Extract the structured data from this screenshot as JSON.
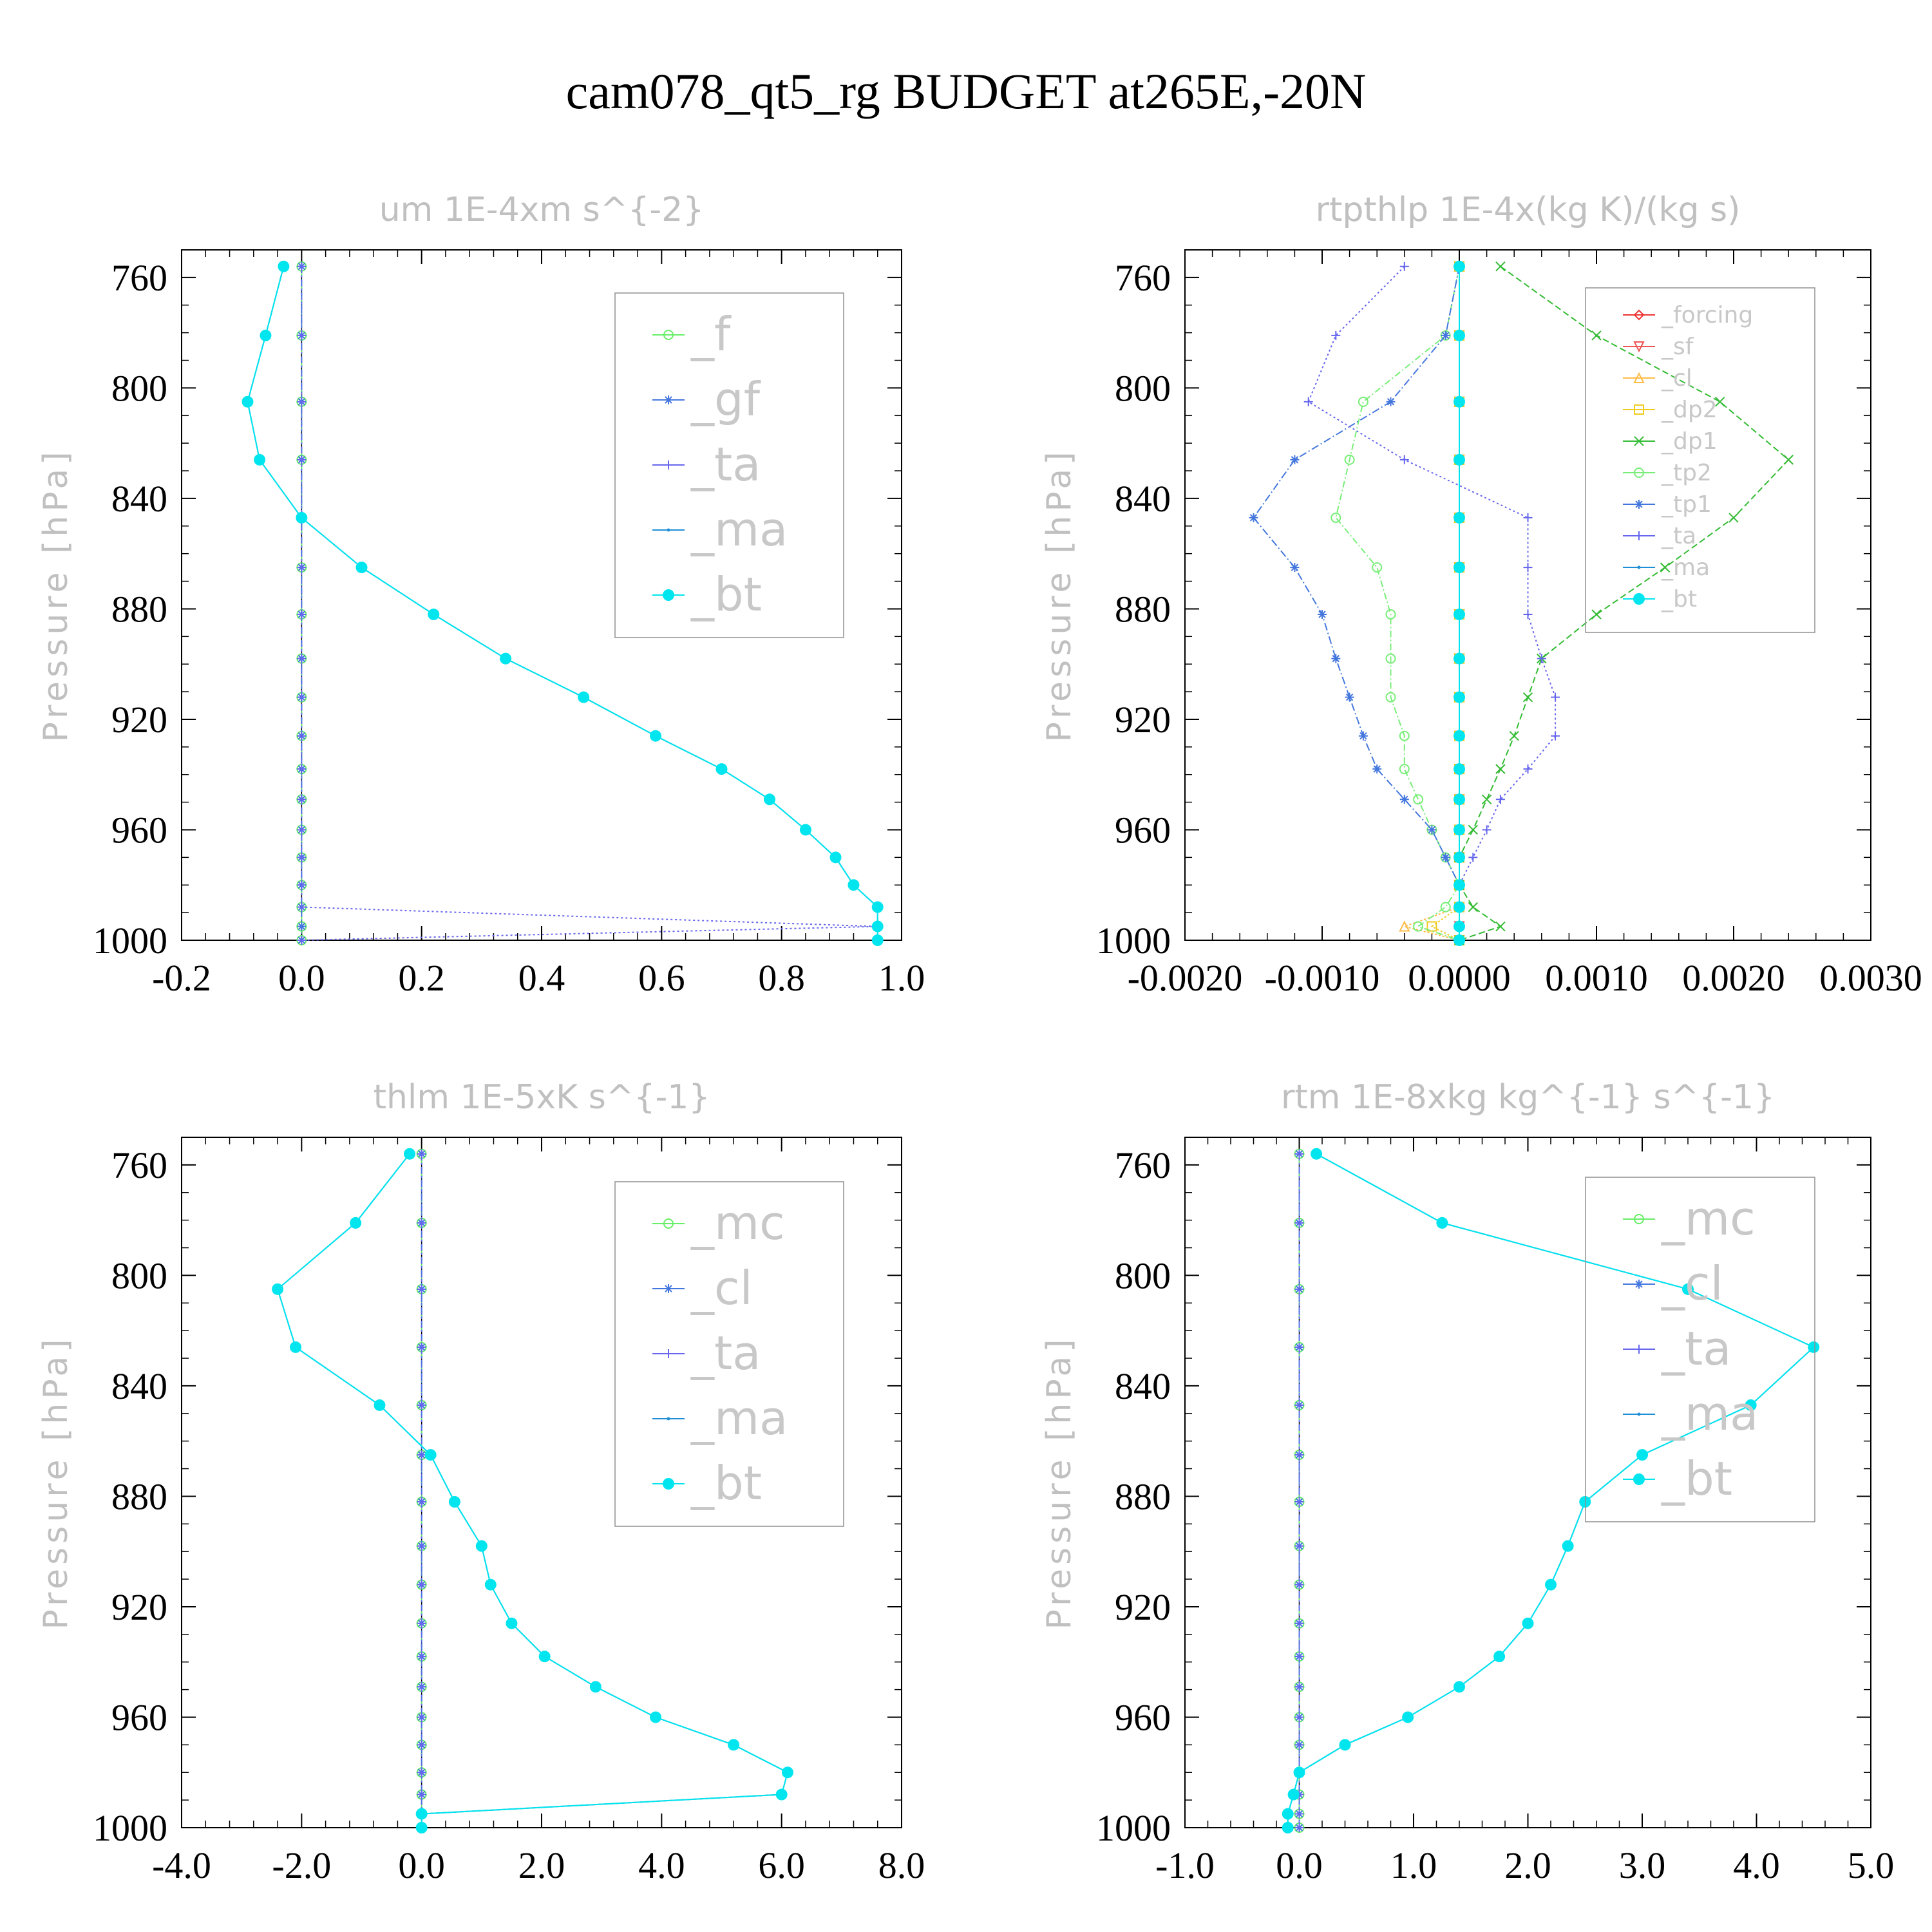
{
  "figure_title": "cam078_qt5_rg  BUDGET at265E,-20N",
  "chart_data": [
    {
      "type": "line",
      "title": "um   1E-4xm s^{-2}",
      "ylabel": "Pressure [hPa]",
      "xlabel": "",
      "xlim": [
        -0.2,
        1.0
      ],
      "ylim": [
        1000,
        750
      ],
      "xticks": [
        "-0.2",
        "0.0",
        "0.2",
        "0.4",
        "0.6",
        "0.8",
        "1.0"
      ],
      "yticks": [
        "760",
        "800",
        "840",
        "880",
        "920",
        "960",
        "1000"
      ],
      "legend_position": "top-right",
      "y": [
        756,
        781,
        805,
        826,
        847,
        865,
        882,
        898,
        912,
        926,
        938,
        949,
        960,
        970,
        980,
        988,
        995,
        1000
      ],
      "series": [
        {
          "name": "_f",
          "color": "#66ee66",
          "marker": "circle",
          "dash": "6,4",
          "values": [
            0,
            0,
            0,
            0,
            0,
            0,
            0,
            0,
            0,
            0,
            0,
            0,
            0,
            0,
            0,
            0,
            0,
            0
          ]
        },
        {
          "name": "_gf",
          "color": "#4477dd",
          "marker": "asterisk",
          "dash": "10,4,2,4",
          "values": [
            0,
            0,
            0,
            0,
            0,
            0,
            0,
            0,
            0,
            0,
            0,
            0,
            0,
            0,
            0,
            0,
            0,
            0
          ]
        },
        {
          "name": "_ta",
          "color": "#6666ee",
          "marker": "plus",
          "dash": "3,4",
          "values": [
            0,
            0,
            0,
            0,
            0,
            0,
            0,
            0,
            0,
            0,
            0,
            0,
            0,
            0,
            0,
            0,
            0.96,
            0
          ]
        },
        {
          "name": "_ma",
          "color": "#1e8fd6",
          "marker": "dot",
          "dash": "",
          "values": [
            -0.03,
            -0.06,
            -0.09,
            -0.07,
            0.0,
            0.1,
            0.22,
            0.34,
            0.47,
            0.59,
            0.7,
            0.78,
            0.84,
            0.89,
            0.92,
            0.96,
            0.96,
            0.96
          ]
        },
        {
          "name": "_bt",
          "color": "#00e5ee",
          "marker": "bigdot",
          "dash": "",
          "values": [
            -0.03,
            -0.06,
            -0.09,
            -0.07,
            0.0,
            0.1,
            0.22,
            0.34,
            0.47,
            0.59,
            0.7,
            0.78,
            0.84,
            0.89,
            0.92,
            0.96,
            0.96,
            0.96
          ]
        }
      ]
    },
    {
      "type": "line",
      "title": "rtpthlp   1E-4x(kg K)/(kg s)",
      "ylabel": "Pressure [hPa]",
      "xlabel": "",
      "xlim": [
        -0.002,
        0.003
      ],
      "ylim": [
        1000,
        750
      ],
      "xticks": [
        "-0.0020",
        "-0.0010",
        "0.0000",
        "0.0010",
        "0.0020",
        "0.0030"
      ],
      "yticks": [
        "760",
        "800",
        "840",
        "880",
        "920",
        "960",
        "1000"
      ],
      "legend_position": "top-right",
      "y": [
        756,
        781,
        805,
        826,
        847,
        865,
        882,
        898,
        912,
        926,
        938,
        949,
        960,
        970,
        980,
        988,
        995,
        1000
      ],
      "series": [
        {
          "name": "_forcing",
          "color": "#ee3333",
          "marker": "diamond",
          "dash": "",
          "values": [
            0,
            0,
            0,
            0,
            0,
            0,
            0,
            0,
            0,
            0,
            0,
            0,
            0,
            0,
            0,
            0,
            0,
            0
          ]
        },
        {
          "name": "_sf",
          "color": "#ee5555",
          "marker": "triangle-down",
          "dash": "",
          "values": [
            0,
            0,
            0,
            0,
            0,
            0,
            0,
            0,
            0,
            0,
            0,
            0,
            0,
            0,
            0,
            0,
            0,
            0
          ]
        },
        {
          "name": "_cl",
          "color": "#ffbb44",
          "marker": "triangle",
          "dash": "3,3",
          "values": [
            0,
            0,
            0,
            0,
            0,
            0,
            0,
            0,
            0,
            0,
            0,
            0,
            0,
            0,
            0,
            0,
            -0.0004,
            0
          ]
        },
        {
          "name": "_dp2",
          "color": "#eecc22",
          "marker": "square",
          "dash": "3,3",
          "values": [
            0,
            0,
            0,
            0,
            0,
            0,
            0,
            0,
            0,
            0,
            0,
            0,
            0,
            0,
            0,
            0,
            -0.0002,
            0
          ]
        },
        {
          "name": "_dp1",
          "color": "#33bb33",
          "marker": "cross",
          "dash": "10,5",
          "values": [
            0.0003,
            0.001,
            0.0019,
            0.0024,
            0.002,
            0.0015,
            0.001,
            0.0006,
            0.0005,
            0.0004,
            0.0003,
            0.0002,
            0.0001,
            0.0,
            0.0,
            0.0001,
            0.0003,
            0.0
          ]
        },
        {
          "name": "_tp2",
          "color": "#77ee77",
          "marker": "circle",
          "dash": "10,4,2,4",
          "values": [
            0.0,
            -0.0001,
            -0.0007,
            -0.0008,
            -0.0009,
            -0.0006,
            -0.0005,
            -0.0005,
            -0.0005,
            -0.0004,
            -0.0004,
            -0.0003,
            -0.0002,
            -0.0001,
            0.0,
            -0.0001,
            -0.0003,
            0.0
          ]
        },
        {
          "name": "_tp1",
          "color": "#4477dd",
          "marker": "asterisk",
          "dash": "12,4,2,4",
          "values": [
            0.0,
            -0.0001,
            -0.0005,
            -0.0012,
            -0.0015,
            -0.0012,
            -0.001,
            -0.0009,
            -0.0008,
            -0.0007,
            -0.0006,
            -0.0004,
            -0.0002,
            -0.0001,
            0.0,
            0.0,
            0.0,
            0.0
          ]
        },
        {
          "name": "_ta",
          "color": "#6666ee",
          "marker": "plus",
          "dash": "3,4",
          "values": [
            -0.0004,
            -0.0009,
            -0.0011,
            -0.0004,
            0.0005,
            0.0005,
            0.0005,
            0.0006,
            0.0007,
            0.0007,
            0.0005,
            0.0003,
            0.0002,
            0.0001,
            0.0,
            0.0,
            0.0,
            0.0
          ]
        },
        {
          "name": "_ma",
          "color": "#1e8fd6",
          "marker": "dot",
          "dash": "",
          "values": [
            0,
            0,
            0,
            0,
            0,
            0,
            0,
            0,
            0,
            0,
            0,
            0,
            0,
            0,
            0,
            0,
            0,
            0
          ]
        },
        {
          "name": "_bt",
          "color": "#00e5ee",
          "marker": "bigdot",
          "dash": "",
          "values": [
            0,
            0,
            0,
            0,
            0,
            0,
            0,
            0,
            0,
            0,
            0,
            0,
            0,
            0,
            0,
            0,
            0,
            0
          ]
        }
      ]
    },
    {
      "type": "line",
      "title": "thlm   1E-5xK s^{-1}",
      "ylabel": "Pressure [hPa]",
      "xlabel": "",
      "xlim": [
        -4.0,
        8.0
      ],
      "ylim": [
        1000,
        750
      ],
      "xticks": [
        "-4.0",
        "-2.0",
        "0.0",
        "2.0",
        "4.0",
        "6.0",
        "8.0"
      ],
      "yticks": [
        "760",
        "800",
        "840",
        "880",
        "920",
        "960",
        "1000"
      ],
      "legend_position": "top-right",
      "y": [
        756,
        781,
        805,
        826,
        847,
        865,
        882,
        898,
        912,
        926,
        938,
        949,
        960,
        970,
        980,
        988,
        995,
        1000
      ],
      "series": [
        {
          "name": "_mc",
          "color": "#66ee66",
          "marker": "circle",
          "dash": "6,4",
          "values": [
            0,
            0,
            0,
            0,
            0,
            0,
            0,
            0,
            0,
            0,
            0,
            0,
            0,
            0,
            0,
            0,
            0,
            0
          ]
        },
        {
          "name": "_cl",
          "color": "#4477dd",
          "marker": "asterisk",
          "dash": "10,4,2,4",
          "values": [
            0,
            0,
            0,
            0,
            0,
            0,
            0,
            0,
            0,
            0,
            0,
            0,
            0,
            0,
            0,
            0,
            0,
            0
          ]
        },
        {
          "name": "_ta",
          "color": "#6666ee",
          "marker": "plus",
          "dash": "3,4",
          "values": [
            0,
            0,
            0,
            0,
            0,
            0,
            0,
            0,
            0,
            0,
            0,
            0,
            0,
            0,
            0,
            0,
            0,
            0
          ]
        },
        {
          "name": "_ma",
          "color": "#1e8fd6",
          "marker": "dot",
          "dash": "",
          "values": [
            -0.2,
            -1.1,
            -2.4,
            -2.1,
            -0.7,
            0.15,
            0.55,
            1.0,
            1.15,
            1.5,
            2.05,
            2.9,
            3.9,
            5.2,
            6.1,
            6.0,
            0.0,
            0.0
          ]
        },
        {
          "name": "_bt",
          "color": "#00e5ee",
          "marker": "bigdot",
          "dash": "",
          "values": [
            -0.2,
            -1.1,
            -2.4,
            -2.1,
            -0.7,
            0.15,
            0.55,
            1.0,
            1.15,
            1.5,
            2.05,
            2.9,
            3.9,
            5.2,
            6.1,
            6.0,
            0.0,
            0.0
          ]
        }
      ]
    },
    {
      "type": "line",
      "title": "rtm   1E-8xkg kg^{-1} s^{-1}",
      "ylabel": "Pressure [hPa]",
      "xlabel": "",
      "xlim": [
        -1.0,
        5.0
      ],
      "ylim": [
        1000,
        750
      ],
      "xticks": [
        "-1.0",
        "0.0",
        "1.0",
        "2.0",
        "3.0",
        "4.0",
        "5.0"
      ],
      "yticks": [
        "760",
        "800",
        "840",
        "880",
        "920",
        "960",
        "1000"
      ],
      "legend_position": "top-right",
      "y": [
        756,
        781,
        805,
        826,
        847,
        865,
        882,
        898,
        912,
        926,
        938,
        949,
        960,
        970,
        980,
        988,
        995,
        1000
      ],
      "series": [
        {
          "name": "_mc",
          "color": "#66ee66",
          "marker": "circle",
          "dash": "6,4",
          "values": [
            0,
            0,
            0,
            0,
            0,
            0,
            0,
            0,
            0,
            0,
            0,
            0,
            0,
            0,
            0,
            0,
            0,
            0
          ]
        },
        {
          "name": "_cl",
          "color": "#4477dd",
          "marker": "asterisk",
          "dash": "10,4,2,4",
          "values": [
            0,
            0,
            0,
            0,
            0,
            0,
            0,
            0,
            0,
            0,
            0,
            0,
            0,
            0,
            0,
            0,
            0,
            0
          ]
        },
        {
          "name": "_ta",
          "color": "#6666ee",
          "marker": "plus",
          "dash": "3,4",
          "values": [
            0,
            0,
            0,
            0,
            0,
            0,
            0,
            0,
            0,
            0,
            0,
            0,
            0,
            0,
            0,
            0,
            0,
            0
          ]
        },
        {
          "name": "_ma",
          "color": "#1e8fd6",
          "marker": "dot",
          "dash": "",
          "values": [
            0.15,
            1.25,
            3.4,
            4.5,
            3.95,
            3.0,
            2.5,
            2.35,
            2.2,
            2.0,
            1.75,
            1.4,
            0.95,
            0.4,
            0.0,
            -0.05,
            -0.1,
            -0.1
          ]
        },
        {
          "name": "_bt",
          "color": "#00e5ee",
          "marker": "bigdot",
          "dash": "",
          "values": [
            0.15,
            1.25,
            3.4,
            4.5,
            3.95,
            3.0,
            2.5,
            2.35,
            2.2,
            2.0,
            1.75,
            1.4,
            0.95,
            0.4,
            0.0,
            -0.05,
            -0.1,
            -0.1
          ]
        }
      ]
    }
  ]
}
